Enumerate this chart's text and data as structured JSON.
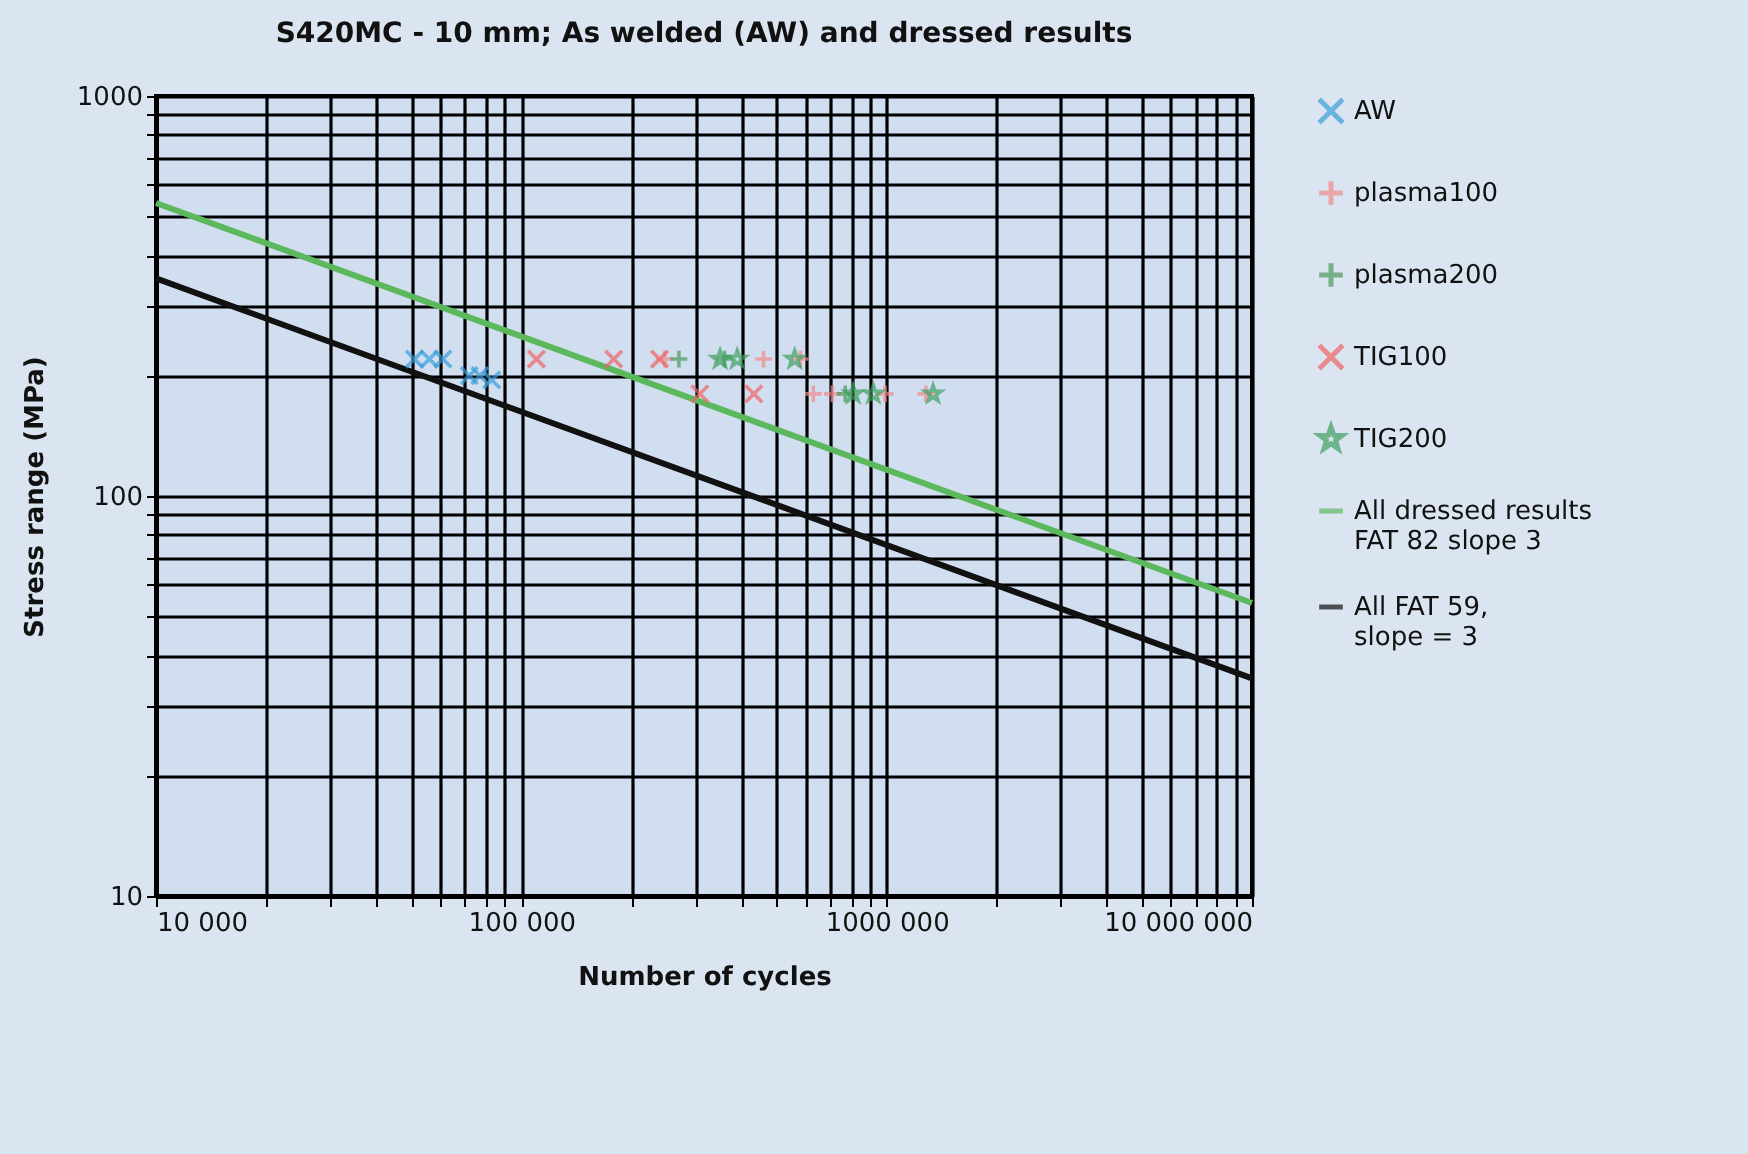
{
  "chart_data": {
    "type": "scatter",
    "title": "S420MC - 10 mm; As welded (AW) and dressed results",
    "xlabel": "Number of cycles",
    "ylabel": "Stress range (MPa)",
    "log": "xy",
    "grid": true,
    "legend": "right",
    "xlim": [
      10000,
      10000000
    ],
    "ylim": [
      10,
      1000
    ],
    "xticks": [
      {
        "value": 10000,
        "label": "10 000"
      },
      {
        "value": 20000,
        "label": null
      },
      {
        "value": 30000,
        "label": null
      },
      {
        "value": 40000,
        "label": null
      },
      {
        "value": 50000,
        "label": null
      },
      {
        "value": 60000,
        "label": null
      },
      {
        "value": 70000,
        "label": null
      },
      {
        "value": 80000,
        "label": null
      },
      {
        "value": 90000,
        "label": null
      },
      {
        "value": 100000,
        "label": "100 000"
      },
      {
        "value": 200000,
        "label": null
      },
      {
        "value": 300000,
        "label": null
      },
      {
        "value": 400000,
        "label": null
      },
      {
        "value": 500000,
        "label": null
      },
      {
        "value": 600000,
        "label": null
      },
      {
        "value": 700000,
        "label": null
      },
      {
        "value": 800000,
        "label": null
      },
      {
        "value": 900000,
        "label": null
      },
      {
        "value": 1000000,
        "label": "1000 000"
      },
      {
        "value": 2000000,
        "label": null
      },
      {
        "value": 3000000,
        "label": null
      },
      {
        "value": 4000000,
        "label": null
      },
      {
        "value": 5000000,
        "label": null
      },
      {
        "value": 6000000,
        "label": null
      },
      {
        "value": 7000000,
        "label": null
      },
      {
        "value": 8000000,
        "label": null
      },
      {
        "value": 9000000,
        "label": null
      },
      {
        "value": 10000000,
        "label": "10 000 000"
      }
    ],
    "yticks": [
      10,
      {
        "value": 20,
        "label": null
      },
      {
        "value": 30,
        "label": null
      },
      {
        "value": 40,
        "label": null
      },
      {
        "value": 50,
        "label": null
      },
      {
        "value": 60,
        "label": null
      },
      {
        "value": 70,
        "label": null
      },
      {
        "value": 80,
        "label": null
      },
      {
        "value": 90,
        "label": null
      },
      100,
      {
        "value": 200,
        "label": null
      },
      {
        "value": 300,
        "label": null
      },
      {
        "value": 400,
        "label": null
      },
      {
        "value": 500,
        "label": null
      },
      {
        "value": 600,
        "label": null
      },
      {
        "value": 700,
        "label": null
      },
      {
        "value": 800,
        "label": null
      },
      {
        "value": 900,
        "label": null
      },
      1000
    ],
    "series": [
      {
        "name": "AW",
        "marker": "cross",
        "color": "#3a9ed8",
        "x": [
          51000,
          56000,
          61000,
          72000,
          77000,
          83000
        ],
        "values": [
          220,
          220,
          220,
          200,
          200,
          195
        ]
      },
      {
        "name": "plasma100",
        "marker": "plus",
        "color": "#f08c8c",
        "x": [
          247000,
          460000,
          580000,
          630000,
          710000,
          990000,
          1280000
        ],
        "values": [
          220,
          220,
          220,
          180,
          180,
          180,
          180
        ]
      },
      {
        "name": "plasma200",
        "marker": "plus",
        "color": "#4a9a5a",
        "x": [
          270000,
          360000,
          770000
        ],
        "values": [
          220,
          220,
          180
        ]
      },
      {
        "name": "TIG100",
        "marker": "cross",
        "color": "#f06464",
        "x": [
          110000,
          179000,
          239000,
          308000,
          433000
        ],
        "values": [
          220,
          220,
          220,
          180,
          180
        ]
      },
      {
        "name": "TIG200",
        "marker": "star",
        "color": "#3fa060",
        "x": [
          350000,
          390000,
          560000,
          810000,
          920000,
          1340000
        ],
        "values": [
          220,
          220,
          220,
          180,
          180,
          180
        ]
      },
      {
        "name": "All dressed results\nFAT 82 slope 3",
        "type": "line",
        "color": "#5cb85c",
        "x": [
          10000,
          10000000
        ],
        "values": [
          540,
          54
        ]
      },
      {
        "name": "All FAT 59,\nslope = 3",
        "type": "line",
        "color": "#111111",
        "x": [
          10000,
          10000000
        ],
        "values": [
          350,
          35
        ]
      }
    ]
  }
}
